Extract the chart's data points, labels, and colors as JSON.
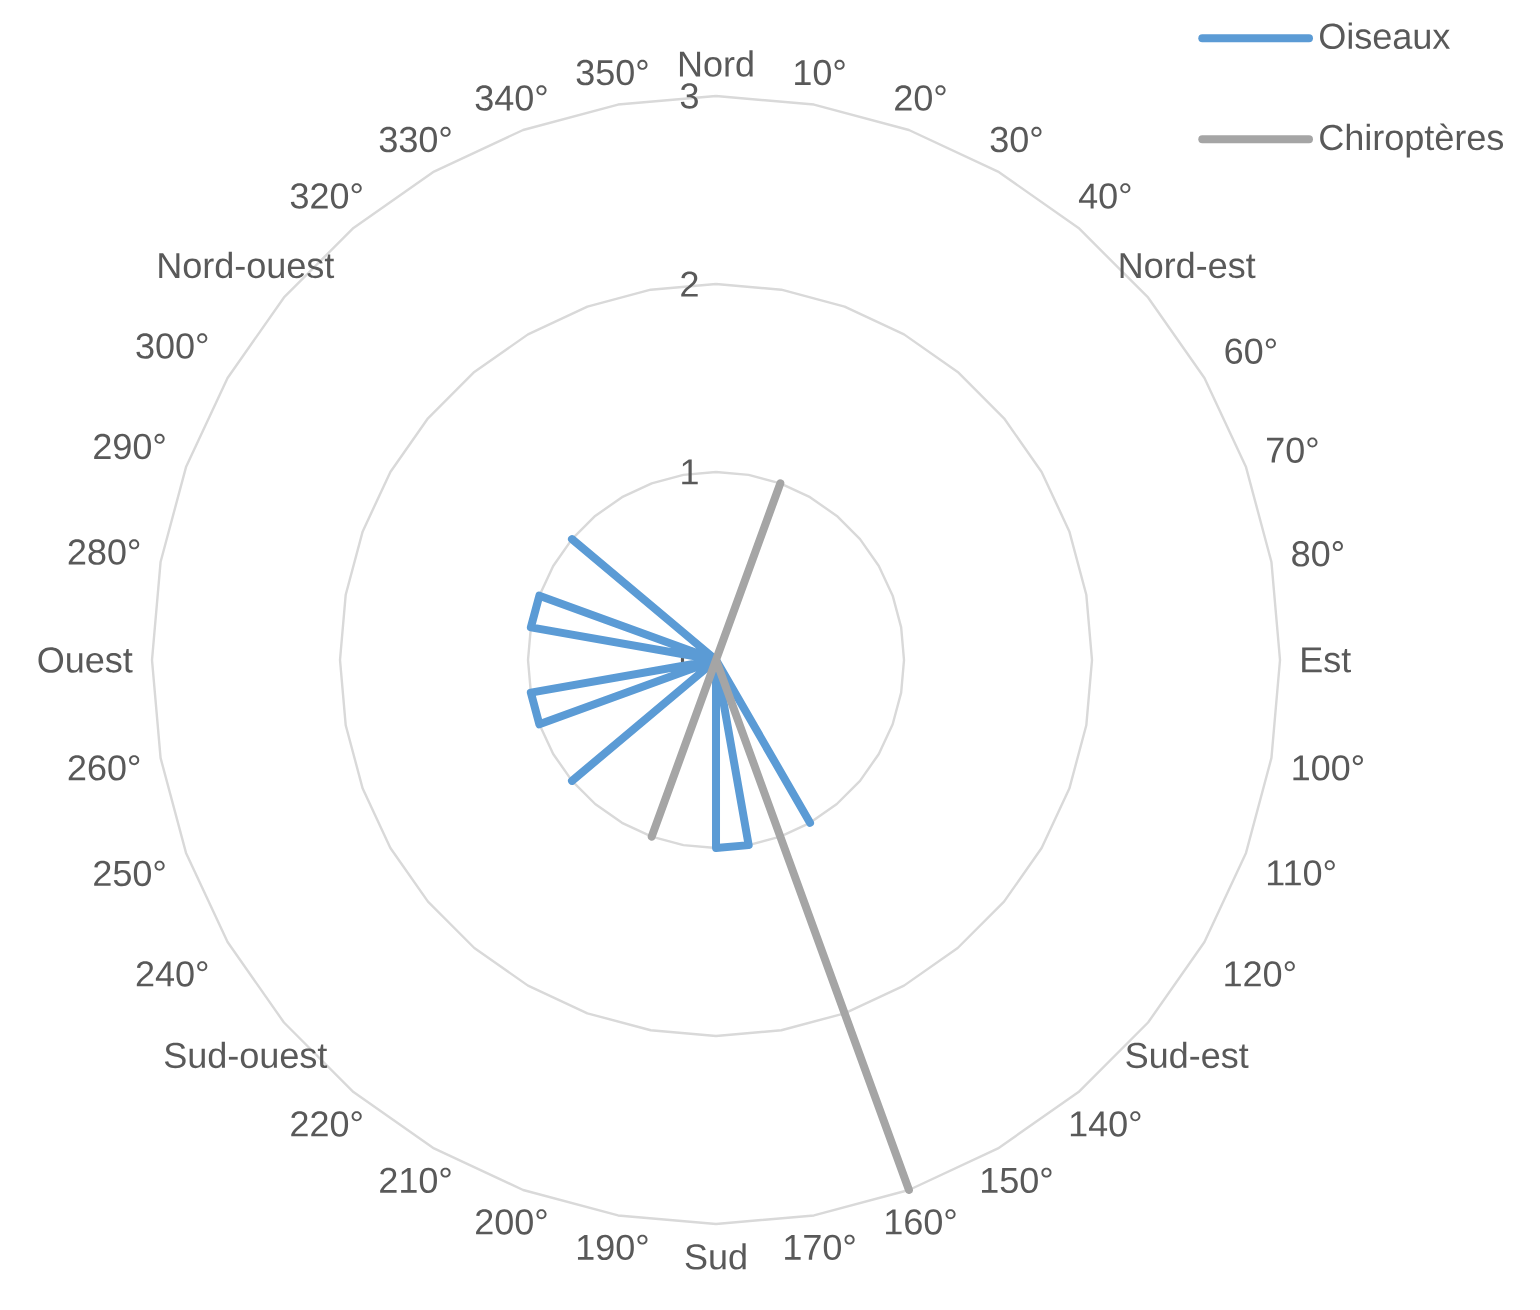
{
  "chart_data": {
    "type": "radar",
    "categories": [
      "Nord",
      "10°",
      "20°",
      "30°",
      "40°",
      "Nord-est",
      "60°",
      "70°",
      "80°",
      "Est",
      "100°",
      "110°",
      "120°",
      "Sud-est",
      "140°",
      "150°",
      "160°",
      "170°",
      "Sud",
      "190°",
      "200°",
      "210°",
      "220°",
      "Sud-ouest",
      "240°",
      "250°",
      "260°",
      "Ouest",
      "280°",
      "290°",
      "300°",
      "Nord-ouest",
      "320°",
      "330°",
      "340°",
      "350°"
    ],
    "series": [
      {
        "name": "Oiseaux",
        "color": "#5b9bd5",
        "values": [
          0,
          0,
          0,
          0,
          0,
          0,
          0,
          0,
          0,
          0,
          0,
          0,
          0,
          0,
          0,
          1,
          0,
          1,
          1,
          0,
          0,
          0,
          0,
          1,
          0,
          1,
          1,
          0,
          1,
          1,
          0,
          1,
          0,
          0,
          0,
          0
        ]
      },
      {
        "name": "Chiroptères",
        "color": "#a5a5a5",
        "values": [
          0,
          0,
          1,
          0,
          0,
          0,
          0,
          0,
          0,
          0,
          0,
          0,
          0,
          0,
          0,
          0,
          3,
          0,
          0,
          0,
          1,
          0,
          0,
          0,
          0,
          0,
          0,
          0,
          0,
          0,
          0,
          0,
          0,
          0,
          0,
          0
        ]
      }
    ],
    "ylim": [
      0,
      3
    ],
    "yticks": [
      0,
      1,
      2,
      3
    ],
    "grid": true,
    "legend": "top right"
  }
}
